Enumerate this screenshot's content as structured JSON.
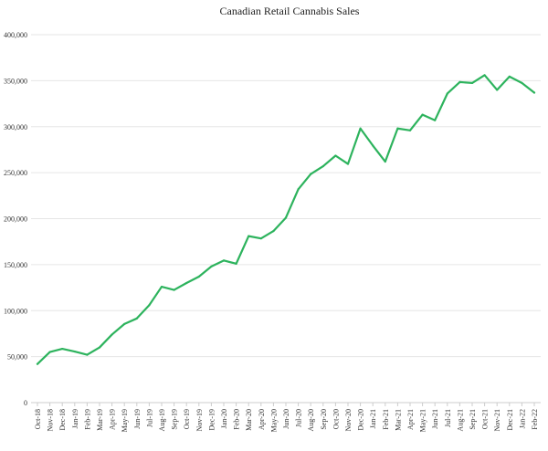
{
  "chart_data": {
    "type": "line",
    "title": "Canadian Retail Cannabis Sales",
    "xlabel": "",
    "ylabel": "",
    "ylim": [
      0,
      400000
    ],
    "yticks": [
      "0",
      "50,000",
      "100,000",
      "150,000",
      "200,000",
      "250,000",
      "300,000",
      "350,000",
      "400,000"
    ],
    "grid": true,
    "line_color": "#2db35d",
    "categories": [
      "Oct-18",
      "Nov-18",
      "Dec-18",
      "Jan-19",
      "Feb-19",
      "Mar-19",
      "Apr-19",
      "May-19",
      "Jun-19",
      "Jul-19",
      "Aug-19",
      "Sep-19",
      "Oct-19",
      "Nov-19",
      "Dec-19",
      "Jan-20",
      "Feb-20",
      "Mar-20",
      "Apr-20",
      "May-20",
      "Jun-20",
      "Jul-20",
      "Aug-20",
      "Sep-20",
      "Oct-20",
      "Nov-20",
      "Dec-20",
      "Jan-21",
      "Feb-21",
      "Mar-21",
      "Apr-21",
      "May-21",
      "Jun-21",
      "Jul-21",
      "Aug-21",
      "Sep-21",
      "Oct-21",
      "Nov-21",
      "Dec-21",
      "Jan-22",
      "Feb-22"
    ],
    "values": [
      42000,
      55000,
      58500,
      55500,
      52000,
      60000,
      74000,
      85500,
      91500,
      106000,
      126000,
      122500,
      130000,
      137000,
      148000,
      154500,
      151000,
      181000,
      178500,
      186500,
      201000,
      232000,
      248500,
      257000,
      268500,
      259500,
      298000,
      279500,
      262000,
      298000,
      296000,
      313000,
      307000,
      336000,
      348500,
      347500,
      356000,
      340000,
      354500,
      347500,
      337000
    ]
  }
}
